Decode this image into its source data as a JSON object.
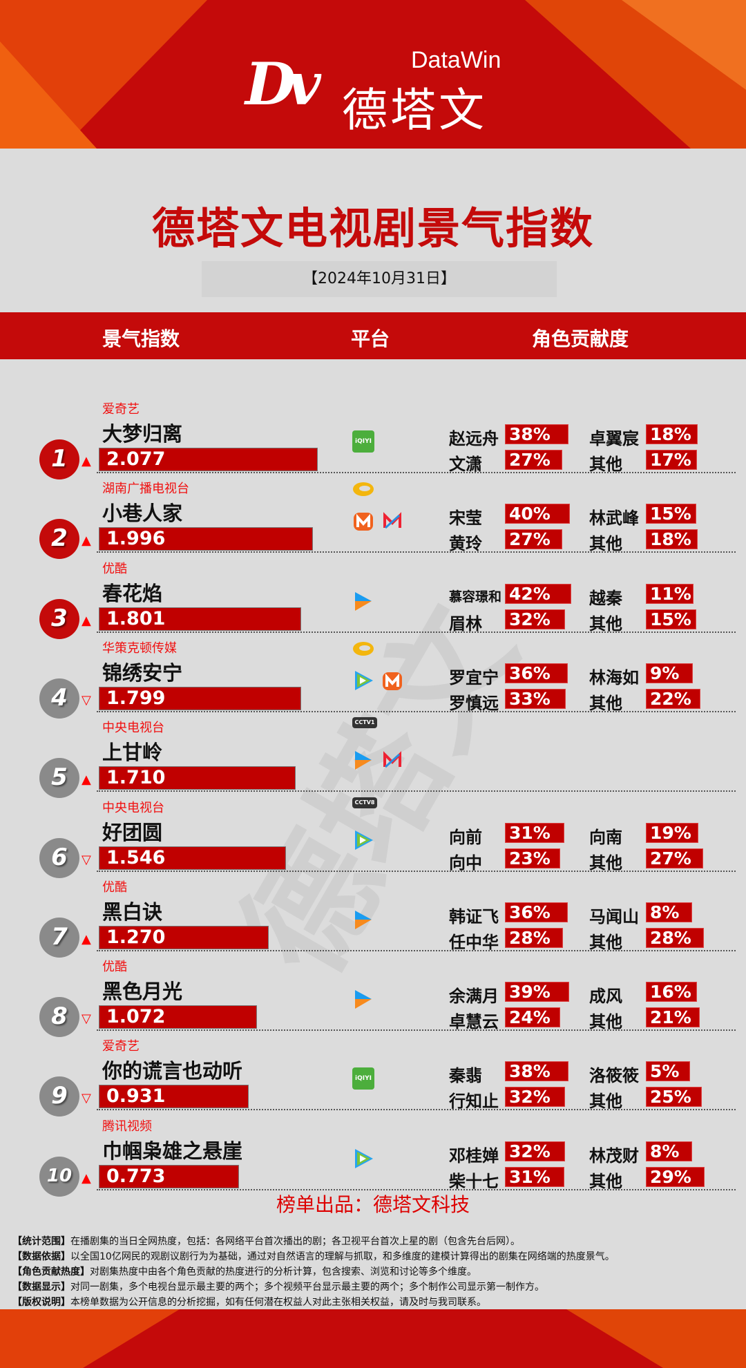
{
  "logo": {
    "mark": "Dv",
    "en": "DataWin",
    "cn": "德塔文"
  },
  "title": "德塔文电视剧景气指数",
  "date": "【2024年10月31日】",
  "columns": {
    "index": "景气指数",
    "platform": "平台",
    "roles": "角色贡献度"
  },
  "colors": {
    "accent": "#c00000",
    "banner": "#c40a0a",
    "producer": "#f01010",
    "top_rank": "#c40a0a",
    "other_rank": "#8a8a8a"
  },
  "watermark": "德塔文",
  "rows": [
    {
      "rank": "1",
      "producer": "爱奇艺",
      "title": "大梦归离",
      "index": "2.077",
      "value": 2.077,
      "trend": "up",
      "platforms": [
        "iqiyi-icon"
      ],
      "roles": [
        [
          "赵远舟",
          "38%"
        ],
        [
          "卓翼宸",
          "18%"
        ],
        [
          "文潇",
          "27%"
        ],
        [
          "其他",
          "17%"
        ]
      ]
    },
    {
      "rank": "2",
      "producer": "湖南广播电视台",
      "title": "小巷人家",
      "index": "1.996",
      "value": 1.996,
      "trend": "up",
      "platforms": [
        "hunan-tv-icon",
        "mgtv-icon",
        "migu-icon"
      ],
      "roles": [
        [
          "宋莹",
          "40%"
        ],
        [
          "林武峰",
          "15%"
        ],
        [
          "黄玲",
          "27%"
        ],
        [
          "其他",
          "18%"
        ]
      ]
    },
    {
      "rank": "3",
      "producer": "优酷",
      "title": "春花焰",
      "index": "1.801",
      "value": 1.801,
      "trend": "up",
      "platforms": [
        "youku-icon"
      ],
      "roles": [
        [
          "慕容璟和",
          "42%"
        ],
        [
          "越秦",
          "11%"
        ],
        [
          "眉林",
          "32%"
        ],
        [
          "其他",
          "15%"
        ]
      ]
    },
    {
      "rank": "4",
      "producer": "华策克顿传媒",
      "title": "锦绣安宁",
      "index": "1.799",
      "value": 1.799,
      "trend": "down",
      "platforms": [
        "hunan-tv-icon",
        "tencent-video-icon",
        "mgtv-icon"
      ],
      "roles": [
        [
          "罗宜宁",
          "36%"
        ],
        [
          "林海如",
          "9%"
        ],
        [
          "罗慎远",
          "33%"
        ],
        [
          "其他",
          "22%"
        ]
      ]
    },
    {
      "rank": "5",
      "producer": "中央电视台",
      "title": "上甘岭",
      "index": "1.710",
      "value": 1.71,
      "trend": "up",
      "platforms": [
        "cctv1-icon",
        "youku-icon",
        "migu-icon"
      ],
      "roles": []
    },
    {
      "rank": "6",
      "producer": "中央电视台",
      "title": "好团圆",
      "index": "1.546",
      "value": 1.546,
      "trend": "down",
      "platforms": [
        "cctv8-icon",
        "tencent-video-icon"
      ],
      "roles": [
        [
          "向前",
          "31%"
        ],
        [
          "向南",
          "19%"
        ],
        [
          "向中",
          "23%"
        ],
        [
          "其他",
          "27%"
        ]
      ]
    },
    {
      "rank": "7",
      "producer": "优酷",
      "title": "黑白诀",
      "index": "1.270",
      "value": 1.27,
      "trend": "up",
      "platforms": [
        "youku-icon"
      ],
      "roles": [
        [
          "韩证飞",
          "36%"
        ],
        [
          "马闻山",
          "8%"
        ],
        [
          "任中华",
          "28%"
        ],
        [
          "其他",
          "28%"
        ]
      ]
    },
    {
      "rank": "8",
      "producer": "优酷",
      "title": "黑色月光",
      "index": "1.072",
      "value": 1.072,
      "trend": "down",
      "platforms": [
        "youku-icon"
      ],
      "roles": [
        [
          "余满月",
          "39%"
        ],
        [
          "成风",
          "16%"
        ],
        [
          "卓慧云",
          "24%"
        ],
        [
          "其他",
          "21%"
        ]
      ]
    },
    {
      "rank": "9",
      "producer": "爱奇艺",
      "title": "你的谎言也动听",
      "index": "0.931",
      "value": 0.931,
      "trend": "down",
      "platforms": [
        "iqiyi-icon"
      ],
      "roles": [
        [
          "秦翡",
          "38%"
        ],
        [
          "洛筱筱",
          "5%"
        ],
        [
          "行知止",
          "32%"
        ],
        [
          "其他",
          "25%"
        ]
      ]
    },
    {
      "rank": "10",
      "producer": "腾讯视频",
      "title": "巾帼枭雄之悬崖",
      "index": "0.773",
      "value": 0.773,
      "trend": "up",
      "platforms": [
        "tencent-video-icon"
      ],
      "roles": [
        [
          "邓桂婵",
          "32%"
        ],
        [
          "林茂财",
          "8%"
        ],
        [
          "柴十七",
          "31%"
        ],
        [
          "其他",
          "29%"
        ]
      ]
    }
  ],
  "platform_labels": {
    "iqiyi-icon": "iQIYI",
    "cctv1-icon": "CCTV1",
    "cctv8-icon": "CCTV8"
  },
  "credit": "榜单出品：德塔文科技",
  "notes": [
    {
      "k": "【统计范围】",
      "v": "在播剧集的当日全网热度，包括：各网络平台首次播出的剧；各卫视平台首次上星的剧（包含先台后网）。"
    },
    {
      "k": "【数据依据】",
      "v": "以全国10亿网民的观剧议剧行为为基础，通过对自然语言的理解与抓取，和多维度的建模计算得出的剧集在网络端的热度景气。"
    },
    {
      "k": "【角色贡献热度】",
      "v": "对剧集热度中由各个角色贡献的热度进行的分析计算，包含搜索、浏览和讨论等多个维度。"
    },
    {
      "k": "【数据显示】",
      "v": "对同一剧集，多个电视台显示最主要的两个；多个视频平台显示最主要的两个；多个制作公司显示第一制作方。"
    },
    {
      "k": "【版权说明】",
      "v": "本榜单数据为公开信息的分析挖掘，如有任何潜在权益人对此主张相关权益，请及时与我司联系。"
    }
  ]
}
